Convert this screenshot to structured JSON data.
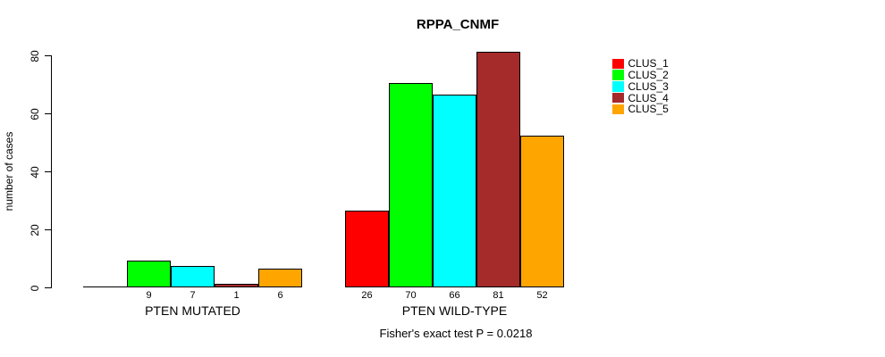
{
  "chart_data": {
    "type": "bar",
    "title": "RPPA_CNMF",
    "ylabel": "number of cases",
    "xlabel": "",
    "ylim": [
      0,
      80
    ],
    "yticks": [
      0,
      20,
      40,
      60,
      80
    ],
    "categories": [
      "PTEN MUTATED",
      "PTEN WILD-TYPE"
    ],
    "series": [
      {
        "name": "CLUS_1",
        "color": "#FF0000",
        "values": [
          0,
          26
        ]
      },
      {
        "name": "CLUS_2",
        "color": "#00FF00",
        "values": [
          9,
          70
        ]
      },
      {
        "name": "CLUS_3",
        "color": "#00FFFF",
        "values": [
          7,
          66
        ]
      },
      {
        "name": "CLUS_4",
        "color": "#A52A2A",
        "values": [
          1,
          81
        ]
      },
      {
        "name": "CLUS_5",
        "color": "#FFA500",
        "values": [
          6,
          52
        ]
      }
    ],
    "bar_labels": [
      [
        "",
        "9",
        "7",
        "1",
        "6"
      ],
      [
        "26",
        "70",
        "66",
        "81",
        "52"
      ]
    ],
    "annotation": "Fisher's exact test P = 0.0218",
    "legend_position": "right",
    "grid": false,
    "background": "#FFFFFF",
    "bar_border_color": "#000000",
    "axis_color": "#000000"
  }
}
